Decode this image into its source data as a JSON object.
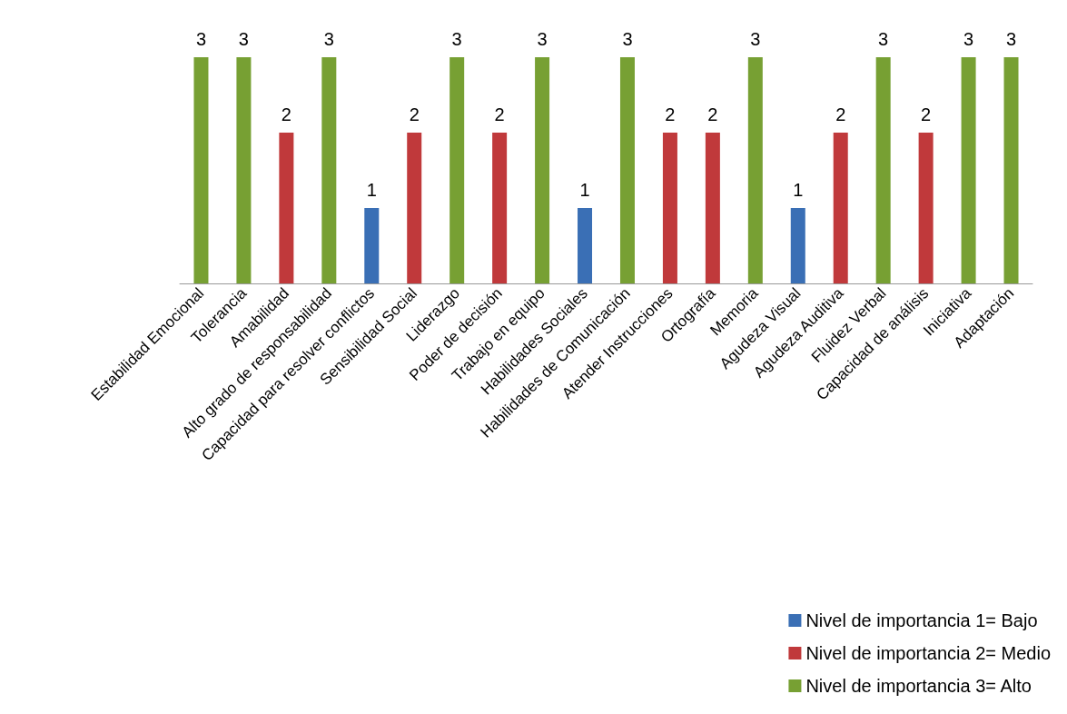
{
  "chart_data": {
    "type": "bar",
    "categories": [
      "Estabilidad Emocional",
      "Tolerancia",
      "Amabilidad",
      "Alto grado de responsabilidad",
      "Capacidad para resolver conflictos",
      "Sensibilidad Social",
      "Liderazgo",
      "Poder de decisión",
      "Trabajo en equipo",
      "Habilidades Sociales",
      "Habilidades de Comunicación",
      "Atender Instrucciones",
      "Ortografía",
      "Memoria",
      "Agudeza Visual",
      "Agudeza Auditiva",
      "Fluidez Verbal",
      "Capacidad de análisis",
      "Iniciativa",
      "Adaptación"
    ],
    "series": [
      {
        "name": "Nivel de importancia 1= Bajo",
        "color": "#3a6fb5",
        "values": [
          null,
          null,
          null,
          null,
          1,
          null,
          null,
          null,
          null,
          1,
          null,
          null,
          null,
          null,
          1,
          null,
          null,
          null,
          null,
          null
        ]
      },
      {
        "name": "Nivel de importancia 2= Medio",
        "color": "#c0393b",
        "values": [
          null,
          null,
          2,
          null,
          null,
          2,
          null,
          2,
          null,
          null,
          null,
          2,
          2,
          null,
          null,
          2,
          null,
          2,
          null,
          null
        ]
      },
      {
        "name": "Nivel de importancia 3= Alto",
        "color": "#77a033",
        "values": [
          3,
          3,
          null,
          3,
          null,
          null,
          3,
          null,
          3,
          null,
          3,
          null,
          null,
          3,
          null,
          null,
          3,
          null,
          3,
          3
        ]
      }
    ],
    "data_labels": true,
    "legend": "bottom right"
  }
}
